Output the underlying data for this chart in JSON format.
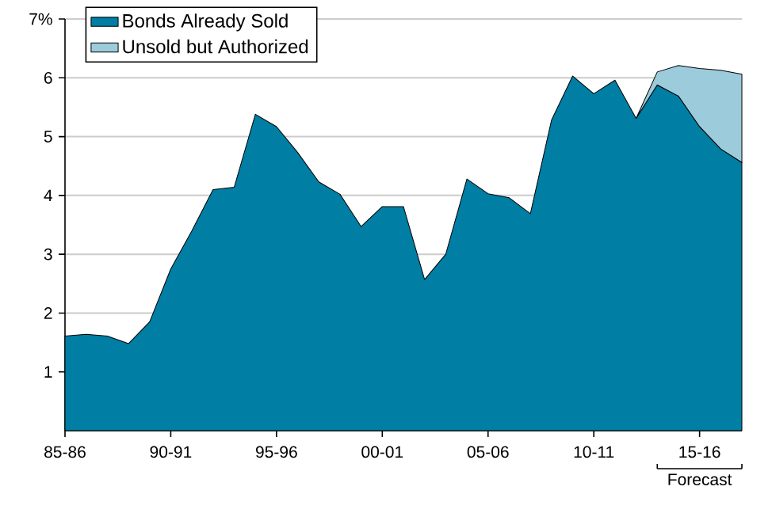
{
  "chart_data": {
    "type": "area",
    "stacked": true,
    "categories": [
      "85-86",
      null,
      null,
      null,
      null,
      "90-91",
      null,
      null,
      null,
      null,
      "95-96",
      null,
      null,
      null,
      null,
      "00-01",
      null,
      null,
      null,
      null,
      "05-06",
      null,
      null,
      null,
      null,
      "10-11",
      null,
      null,
      null,
      null,
      "15-16",
      null,
      null
    ],
    "series": [
      {
        "name": "Bonds Already Sold",
        "color": "#007ea3",
        "values": [
          1.61,
          1.64,
          1.61,
          1.48,
          1.85,
          2.75,
          3.4,
          4.1,
          4.14,
          5.38,
          5.17,
          4.73,
          4.23,
          4.02,
          3.47,
          3.81,
          3.81,
          2.57,
          3.0,
          4.28,
          4.03,
          3.96,
          3.69,
          5.28,
          6.03,
          5.73,
          5.96,
          5.31,
          5.88,
          5.69,
          5.17,
          4.79,
          4.56
        ]
      },
      {
        "name": "Unsold but Authorized",
        "color": "#9ccbdb",
        "values": [
          null,
          null,
          null,
          null,
          null,
          null,
          null,
          null,
          null,
          null,
          null,
          null,
          null,
          null,
          null,
          null,
          null,
          null,
          null,
          null,
          null,
          null,
          null,
          null,
          null,
          null,
          null,
          0,
          0.22,
          0.52,
          0.99,
          1.34,
          1.5
        ]
      }
    ],
    "ylim": [
      0,
      7
    ],
    "yticks": [
      1,
      2,
      3,
      4,
      5,
      6,
      {
        "value": 7,
        "label": "7%"
      }
    ],
    "grid": "y",
    "legend": "top left",
    "annotations": [
      "Forecast"
    ]
  }
}
